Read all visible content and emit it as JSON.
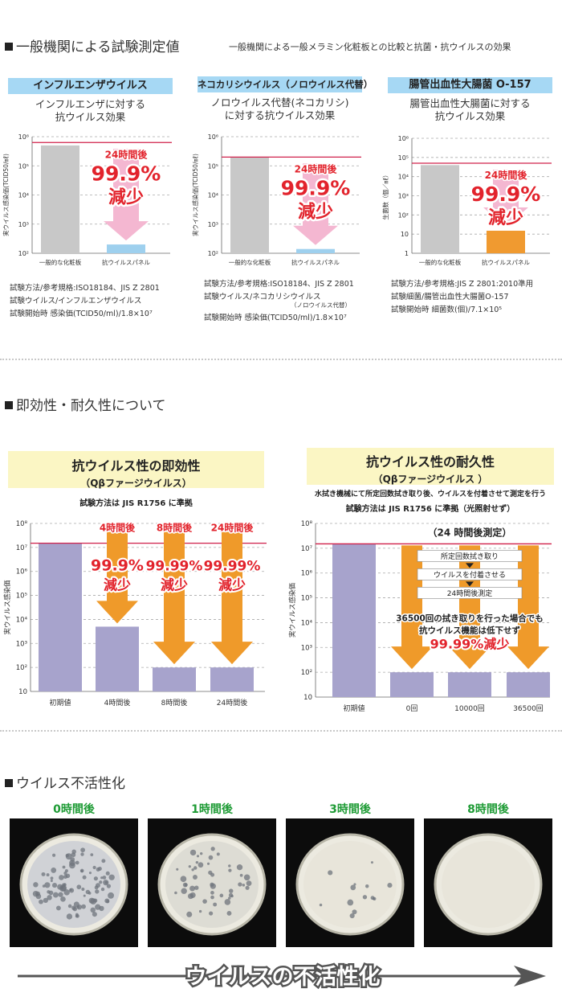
{
  "section1": {
    "title": "一般機関による試験測定値",
    "subtitle": "一般機関による一般メラミン化粧板との比較と抗菌・抗ウイルスの効果"
  },
  "section2": {
    "title": "即効性・耐久性について"
  },
  "section3": {
    "title": "ウイルス不活性化"
  },
  "panels": [
    {
      "title": "インフルエンザウイルス",
      "sub1": "インフルエンザに対する",
      "sub2": "抗ウイルス効果",
      "notes": [
        "試験方法/参考規格:ISO18184、JIS Z 2801",
        "試験ウイルス/インフルエンザウイルス",
        "試験開始時 感染価(TCID50/ml)/1.8×10⁷"
      ],
      "notes_extra": ""
    },
    {
      "title": "ネコカリシウイルス（ノロウイルス代替）",
      "sub1": "ノロウイルス代替(ネコカリシ)",
      "sub2": "に対する抗ウイルス効果",
      "notes": [
        "試験方法/参考規格:ISO18184、JIS Z 2801",
        "試験ウイルス/ネコカリシウイルス",
        "試験開始時 感染価(TCID50/ml)/1.8×10⁷"
      ],
      "notes_extra": "（ノロウイルス代替）"
    },
    {
      "title": "腸管出血性大腸菌 O-157",
      "sub1": "腸管出血性大腸菌に対する",
      "sub2": "抗ウイルス効果",
      "notes": [
        "試験方法/参考規格:JIS Z 2801:2010準用",
        "試験細菌/腸管出血性大腸菌O-157",
        "試験開始時 細菌数(個)/7.1×10⁵"
      ],
      "notes_extra": ""
    }
  ],
  "photos": {
    "labels": [
      "0時間後",
      "1時間後",
      "3時間後",
      "8時間後"
    ],
    "arrow_text": "ウイルスの不活性化"
  },
  "chart_data": [
    {
      "type": "bar",
      "ylabel": "実ウイルス感染価(TCID50/㎖)",
      "yscale": "log",
      "ylim": [
        100,
        1000000
      ],
      "yticks": [
        "10²",
        "10³",
        "10⁴",
        "10⁵",
        "10⁶"
      ],
      "categories": [
        "一般的な化粧板",
        "抗ウイルスパネル"
      ],
      "values": [
        500000,
        200
      ],
      "colors": [
        "#c8c8c8",
        "#9ed0ee"
      ],
      "reference_value": 630000,
      "annotation": {
        "time": "24時間後",
        "percent": "99.9%",
        "word": "減少"
      }
    },
    {
      "type": "bar",
      "ylabel": "実ウイルス感染価(TCID50/㎖)",
      "yscale": "log",
      "ylim": [
        100,
        1000000
      ],
      "yticks": [
        "10²",
        "10³",
        "10⁴",
        "10⁵",
        "10⁶"
      ],
      "categories": [
        "一般的な化粧板",
        "抗ウイルスパネル"
      ],
      "values": [
        200000,
        140
      ],
      "colors": [
        "#c8c8c8",
        "#9ed0ee"
      ],
      "reference_value": 200000,
      "annotation": {
        "time": "24時間後",
        "percent": "99.9%",
        "word": "減少"
      }
    },
    {
      "type": "bar",
      "ylabel": "生菌数（個／㎖）",
      "yscale": "log",
      "ylim": [
        1,
        1000000
      ],
      "yticks": [
        "1",
        "10",
        "10²",
        "10³",
        "10⁴",
        "10⁵",
        "10⁶"
      ],
      "categories": [
        "一般的な化粧板",
        "抗ウイルスパネル"
      ],
      "values": [
        40000,
        15
      ],
      "colors": [
        "#c8c8c8",
        "#f09a30"
      ],
      "reference_value": 50000,
      "annotation": {
        "time": "24時間後",
        "percent": "99.9%",
        "word": "減少"
      }
    },
    {
      "type": "bar",
      "title": "抗ウイルス性の即効性",
      "subtitle": "（Qβファージウイルス）",
      "method": "試験方法は JIS R1756 に準拠",
      "ylabel": "実ウイルス感染価",
      "yscale": "log",
      "ylim": [
        10,
        100000000
      ],
      "yticks": [
        "10",
        "10²",
        "10³",
        "10⁴",
        "10⁵",
        "10⁶",
        "10⁷",
        "10⁸"
      ],
      "categories": [
        "初期値",
        "4時間後",
        "8時間後",
        "24時間後"
      ],
      "values": [
        15000000,
        5000,
        100,
        100
      ],
      "colors": [
        "#a7a3cc"
      ],
      "reference_value": 15000000,
      "annotations": [
        {
          "time": "4時間後",
          "percent": "99.9%",
          "word": "減少"
        },
        {
          "time": "8時間後",
          "percent": "99.99%",
          "word": "減少"
        },
        {
          "time": "24時間後",
          "percent": "99.99%",
          "word": "減少"
        }
      ]
    },
    {
      "type": "bar",
      "title": "抗ウイルス性の耐久性",
      "subtitle": "（Qβファージウイルス ）",
      "method1": "水拭き機械にて所定回数拭き取り後、ウイルスを付着させて測定を行う",
      "method2": "試験方法は JIS R1756 に準拠（光照射せず）",
      "ylabel": "実ウイルス感染価",
      "yscale": "log",
      "ylim": [
        10,
        100000000
      ],
      "yticks": [
        "10",
        "10²",
        "10³",
        "10⁴",
        "10⁵",
        "10⁶",
        "10⁷",
        "10⁸"
      ],
      "categories": [
        "初期値",
        "0回",
        "10000回",
        "36500回"
      ],
      "values": [
        15000000,
        100,
        100,
        100
      ],
      "colors": [
        "#a7a3cc"
      ],
      "reference_value": 15000000,
      "measure_label": "（24 時間後測定）",
      "steps": [
        "所定回数拭き取り",
        "ウイルスを付着させる",
        "24時間後測定"
      ],
      "result1": "36500回の拭き取りを行った場合でも",
      "result2": "抗ウイルス機能は低下せず",
      "result3": "99.99%減少"
    }
  ]
}
